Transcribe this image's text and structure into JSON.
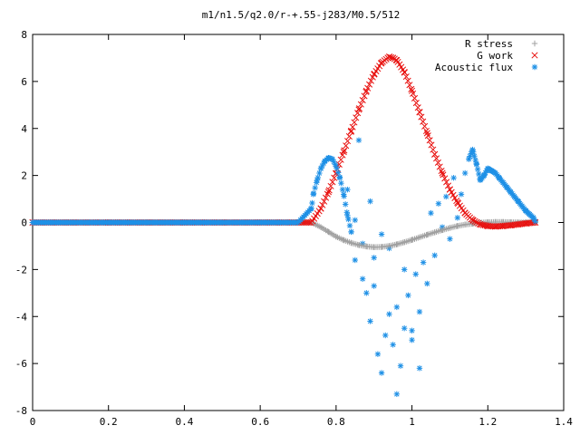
{
  "chart_data": {
    "type": "scatter",
    "title": "m1/n1.5/q2.0/r-+.55-j283/M0.5/512",
    "xlabel": "",
    "ylabel": "",
    "xlim": [
      0,
      1.4
    ],
    "ylim": [
      -8,
      8
    ],
    "x_ticks": [
      "0",
      "0.2",
      "0.4",
      "0.6",
      "0.8",
      "1",
      "1.2",
      "1.4"
    ],
    "y_ticks": [
      "-8",
      "-6",
      "-4",
      "-2",
      "0",
      "2",
      "4",
      "6",
      "8"
    ],
    "grid": false,
    "legend_position": "top-right",
    "series": [
      {
        "name": "R stress",
        "marker": "+",
        "color": "#a0a0a0",
        "x": [
          0.0,
          0.1,
          0.2,
          0.3,
          0.4,
          0.5,
          0.6,
          0.7,
          0.735,
          0.76,
          0.78,
          0.8,
          0.82,
          0.84,
          0.86,
          0.88,
          0.9,
          0.92,
          0.94,
          0.96,
          0.98,
          1.0,
          1.02,
          1.04,
          1.06,
          1.08,
          1.1,
          1.12,
          1.14,
          1.16,
          1.18,
          1.2,
          1.22,
          1.24,
          1.26,
          1.28,
          1.3,
          1.325
        ],
        "y": [
          0,
          0,
          0,
          0,
          0,
          0,
          0,
          0,
          0.0,
          -0.2,
          -0.4,
          -0.6,
          -0.75,
          -0.87,
          -0.96,
          -1.02,
          -1.05,
          -1.04,
          -1.0,
          -0.93,
          -0.84,
          -0.74,
          -0.63,
          -0.52,
          -0.42,
          -0.32,
          -0.23,
          -0.15,
          -0.09,
          -0.05,
          -0.01,
          0.01,
          0.02,
          0.02,
          0.01,
          0.0,
          0.0,
          0.0
        ]
      },
      {
        "name": "G work",
        "marker": "x",
        "color": "#e8110f",
        "x": [
          0.0,
          0.1,
          0.2,
          0.3,
          0.4,
          0.5,
          0.6,
          0.7,
          0.735,
          0.76,
          0.78,
          0.8,
          0.82,
          0.84,
          0.86,
          0.88,
          0.9,
          0.92,
          0.94,
          0.95,
          0.96,
          0.98,
          1.0,
          1.02,
          1.04,
          1.06,
          1.08,
          1.1,
          1.12,
          1.14,
          1.16,
          1.18,
          1.2,
          1.22,
          1.24,
          1.26,
          1.28,
          1.3,
          1.325
        ],
        "y": [
          0,
          0,
          0,
          0,
          0,
          0,
          0,
          0,
          0.0,
          0.6,
          1.3,
          2.1,
          3.0,
          3.9,
          4.8,
          5.6,
          6.3,
          6.8,
          7.05,
          7.0,
          6.9,
          6.4,
          5.6,
          4.7,
          3.8,
          2.9,
          2.1,
          1.4,
          0.85,
          0.4,
          0.1,
          -0.08,
          -0.15,
          -0.17,
          -0.15,
          -0.12,
          -0.08,
          -0.04,
          0.0
        ]
      },
      {
        "name": "Acoustic flux",
        "marker": "*",
        "color": "#1e90e6",
        "x": [
          0.0,
          0.05,
          0.1,
          0.15,
          0.2,
          0.25,
          0.3,
          0.35,
          0.4,
          0.45,
          0.5,
          0.55,
          0.6,
          0.65,
          0.7,
          0.735,
          0.74,
          0.75,
          0.76,
          0.77,
          0.78,
          0.79,
          0.8,
          0.81,
          0.82,
          0.83,
          0.84,
          0.83,
          0.85,
          0.86,
          0.87,
          0.85,
          0.88,
          0.89,
          0.9,
          0.87,
          0.91,
          0.92,
          0.93,
          0.89,
          0.94,
          0.95,
          0.96,
          0.9,
          0.97,
          0.98,
          0.99,
          0.92,
          1.0,
          1.01,
          1.02,
          0.94,
          1.03,
          1.04,
          1.05,
          0.96,
          1.06,
          1.07,
          1.08,
          0.98,
          1.09,
          1.1,
          1.11,
          1.0,
          1.12,
          1.13,
          1.14,
          1.02,
          1.15,
          1.16,
          1.17,
          1.18,
          1.19,
          1.2,
          1.21,
          1.22,
          1.23,
          1.24,
          1.25,
          1.26,
          1.27,
          1.28,
          1.29,
          1.3,
          1.31,
          1.32,
          1.325
        ],
        "y": [
          0,
          0,
          0,
          0,
          0,
          0,
          0,
          0,
          0,
          0,
          0,
          0,
          0,
          0,
          0,
          0.6,
          1.2,
          1.8,
          2.3,
          2.6,
          2.75,
          2.7,
          2.4,
          1.9,
          1.2,
          0.3,
          -0.4,
          1.4,
          -1.6,
          3.5,
          -2.4,
          0.1,
          -3.0,
          -4.2,
          -2.7,
          -0.9,
          -5.6,
          -6.4,
          -4.8,
          0.9,
          -3.9,
          -5.2,
          -7.3,
          -1.5,
          -6.1,
          -4.5,
          -3.1,
          -0.5,
          -5.0,
          -2.2,
          -3.8,
          -1.1,
          -1.7,
          -2.6,
          0.4,
          -3.6,
          -1.4,
          0.8,
          -0.2,
          -2.0,
          1.1,
          -0.7,
          1.9,
          -4.6,
          0.2,
          1.2,
          2.1,
          -6.2,
          2.7,
          3.1,
          2.5,
          1.8,
          2.0,
          2.3,
          2.2,
          2.1,
          1.9,
          1.7,
          1.5,
          1.3,
          1.1,
          0.9,
          0.7,
          0.5,
          0.35,
          0.2,
          0.05
        ]
      }
    ]
  }
}
